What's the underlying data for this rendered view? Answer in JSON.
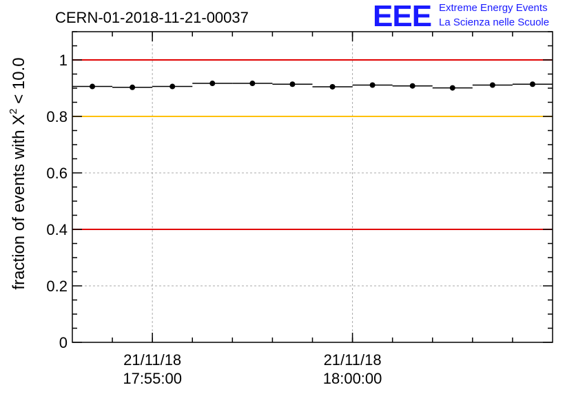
{
  "chart_data": {
    "type": "scatter",
    "title": "CERN-01-2018-11-21-00037",
    "ylabel_prefix": "fraction of events with ",
    "ylabel_chi": "X",
    "ylabel_sup": "2",
    "ylabel_suffix": " < 10.0",
    "xlabel": "",
    "ylim": [
      0,
      1.1
    ],
    "yticks": [
      0,
      0.2,
      0.4,
      0.6,
      0.8,
      1
    ],
    "ytick_labels": [
      "0",
      "0.2",
      "0.4",
      "0.6",
      "0.8",
      "1"
    ],
    "xticks": [
      {
        "x": "2018-11-21T17:55:00",
        "date": "21/11/18",
        "time": "17:55:00"
      },
      {
        "x": "2018-11-21T18:00:00",
        "date": "21/11/18",
        "time": "18:00:00"
      }
    ],
    "xlim": [
      "2018-11-21T17:53:00",
      "2018-11-21T18:05:00"
    ],
    "grid": true,
    "reference_lines": [
      {
        "y": 1.0,
        "color": "#e00000"
      },
      {
        "y": 0.8,
        "color": "#ffc000"
      },
      {
        "y": 0.4,
        "color": "#e00000"
      }
    ],
    "points": [
      {
        "x": "2018-11-21T17:53:30",
        "y": 0.906
      },
      {
        "x": "2018-11-21T17:54:30",
        "y": 0.903
      },
      {
        "x": "2018-11-21T17:55:30",
        "y": 0.906
      },
      {
        "x": "2018-11-21T17:56:30",
        "y": 0.917
      },
      {
        "x": "2018-11-21T17:57:30",
        "y": 0.917
      },
      {
        "x": "2018-11-21T17:58:30",
        "y": 0.914
      },
      {
        "x": "2018-11-21T17:59:30",
        "y": 0.905
      },
      {
        "x": "2018-11-21T18:00:30",
        "y": 0.911
      },
      {
        "x": "2018-11-21T18:01:30",
        "y": 0.908
      },
      {
        "x": "2018-11-21T18:02:30",
        "y": 0.901
      },
      {
        "x": "2018-11-21T18:03:30",
        "y": 0.911
      },
      {
        "x": "2018-11-21T18:04:30",
        "y": 0.914
      }
    ],
    "marker_color": "#000000"
  },
  "logo": {
    "mark": "EEE",
    "line1": "Extreme Energy Events",
    "line2": "La Scienza nelle Scuole"
  }
}
